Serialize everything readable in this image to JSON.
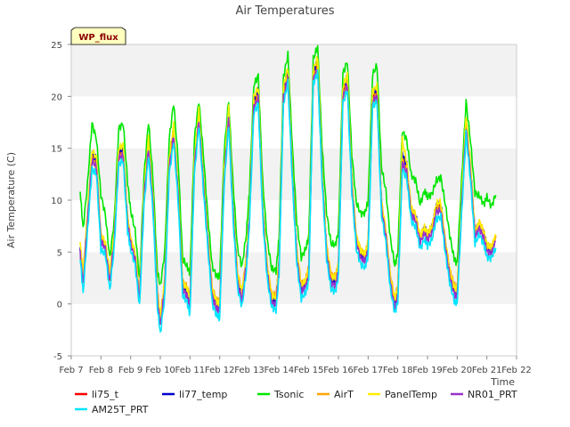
{
  "chart_data": {
    "type": "line",
    "title": "Air Temperatures",
    "xlabel": "Time",
    "ylabel": "Air Temperature (C)",
    "site_badge": "WP_flux",
    "x_unit": "day",
    "xlim": [
      7,
      22
    ],
    "ylim": [
      -5,
      25
    ],
    "x_ticks": [
      7,
      8,
      9,
      10,
      11,
      12,
      13,
      14,
      15,
      16,
      17,
      18,
      19,
      20,
      21,
      22
    ],
    "x_tick_labels": [
      "Feb 7",
      "Feb 8",
      "Feb 9",
      "Feb 10",
      "Feb 11",
      "Feb 12",
      "Feb 13",
      "Feb 14",
      "Feb 15",
      "Feb 16",
      "Feb 17",
      "Feb 18",
      "Feb 19",
      "Feb 20",
      "Feb 21",
      "Feb 22"
    ],
    "y_ticks": [
      -5,
      0,
      5,
      10,
      15,
      20,
      25
    ],
    "y_tick_labels": [
      "-5",
      "0",
      "5",
      "10",
      "15",
      "20",
      "25"
    ],
    "grid": "horizontal bands",
    "legend_position": "bottom",
    "x": [
      7.3,
      7.4,
      7.55,
      7.7,
      7.85,
      8.0,
      8.15,
      8.3,
      8.45,
      8.6,
      8.75,
      8.9,
      9.0,
      9.15,
      9.3,
      9.45,
      9.6,
      9.75,
      9.9,
      10.0,
      10.15,
      10.3,
      10.45,
      10.6,
      10.75,
      10.9,
      11.0,
      11.15,
      11.3,
      11.45,
      11.6,
      11.75,
      11.9,
      12.0,
      12.15,
      12.3,
      12.45,
      12.6,
      12.75,
      12.9,
      13.0,
      13.15,
      13.3,
      13.45,
      13.6,
      13.75,
      13.9,
      14.0,
      14.15,
      14.3,
      14.45,
      14.6,
      14.75,
      14.9,
      15.0,
      15.15,
      15.3,
      15.45,
      15.6,
      15.75,
      15.9,
      16.0,
      16.15,
      16.3,
      16.45,
      16.6,
      16.75,
      16.9,
      17.0,
      17.15,
      17.3,
      17.45,
      17.6,
      17.75,
      17.9,
      18.0,
      18.15,
      18.3,
      18.45,
      18.6,
      18.75,
      18.9,
      19.0,
      19.15,
      19.3,
      19.45,
      19.6,
      19.75,
      19.9,
      20.0,
      20.15,
      20.3,
      20.45,
      20.6,
      20.75,
      20.9,
      21.0,
      21.15,
      21.3
    ],
    "series": [
      {
        "name": "li75_t",
        "color": "#ff0000",
        "values": [
          5.3,
          2.4,
          8.5,
          14.3,
          13.6,
          6.3,
          5.6,
          2.6,
          6.6,
          14.5,
          14.7,
          8.1,
          6.1,
          4.7,
          0.8,
          10.6,
          15.4,
          10.1,
          1.0,
          -1.6,
          2.0,
          13.6,
          16.6,
          11.0,
          1.9,
          1.3,
          0.3,
          13.6,
          18.1,
          12.1,
          6.4,
          1.2,
          0.1,
          0.0,
          12.5,
          18.2,
          9.2,
          2.6,
          0.9,
          4.3,
          8.5,
          19.4,
          20.2,
          9.2,
          3.5,
          0.7,
          0.5,
          4.0,
          20.3,
          22.2,
          12.7,
          4.9,
          1.6,
          2.2,
          3.3,
          22.0,
          23.1,
          12.6,
          5.4,
          2.6,
          2.3,
          3.7,
          20.3,
          21.5,
          11.9,
          6.4,
          4.9,
          4.6,
          5.8,
          19.9,
          20.4,
          9.7,
          6.9,
          2.5,
          0.3,
          1.4,
          14.1,
          13.2,
          9.1,
          8.5,
          6.4,
          7.3,
          6.7,
          7.3,
          9.4,
          9.5,
          6.0,
          3.1,
          1.5,
          1.2,
          9.7,
          17.5,
          13.0,
          6.9,
          7.8,
          6.8,
          5.6,
          5.3,
          6.5
        ]
      },
      {
        "name": "li77_temp",
        "color": "#0000cc",
        "values": [
          5.1,
          2.3,
          8.7,
          14.6,
          13.9,
          6.1,
          5.6,
          2.6,
          6.5,
          14.7,
          15.0,
          8.1,
          6.1,
          4.6,
          0.7,
          10.8,
          15.7,
          10.2,
          0.9,
          -1.8,
          2.0,
          13.8,
          17.0,
          11.1,
          1.8,
          1.2,
          0.1,
          13.8,
          18.5,
          12.2,
          6.4,
          1.0,
          -0.1,
          -0.2,
          12.7,
          18.6,
          9.2,
          2.5,
          0.7,
          4.3,
          8.6,
          19.8,
          20.6,
          9.2,
          3.4,
          0.5,
          0.3,
          3.9,
          20.7,
          22.6,
          12.8,
          4.8,
          1.5,
          2.0,
          3.2,
          22.4,
          23.6,
          12.7,
          5.3,
          2.4,
          2.1,
          3.6,
          20.7,
          21.9,
          11.9,
          6.4,
          4.8,
          4.5,
          5.7,
          20.3,
          20.8,
          9.8,
          6.9,
          2.4,
          0.1,
          1.3,
          14.4,
          13.4,
          9.1,
          8.5,
          6.4,
          7.3,
          6.7,
          7.4,
          9.6,
          9.7,
          6.0,
          3.0,
          1.4,
          1.1,
          9.9,
          17.9,
          13.2,
          6.9,
          7.8,
          6.8,
          5.6,
          5.2,
          6.4
        ]
      },
      {
        "name": "Tsonic",
        "color": "#00e600",
        "values": [
          10.9,
          7.2,
          11.6,
          17.4,
          15.9,
          10.5,
          8.6,
          4.4,
          8.1,
          16.9,
          17.4,
          11.7,
          9.0,
          7.1,
          2.3,
          12.3,
          17.6,
          12.2,
          3.2,
          1.7,
          5.0,
          15.9,
          19.4,
          13.9,
          4.4,
          3.6,
          3.0,
          15.9,
          19.6,
          14.5,
          8.5,
          3.6,
          2.7,
          2.6,
          14.7,
          19.6,
          11.6,
          5.3,
          3.6,
          6.8,
          10.9,
          21.1,
          22.0,
          11.7,
          6.2,
          3.4,
          3.2,
          6.4,
          21.9,
          24.0,
          15.1,
          7.8,
          4.5,
          5.3,
          6.5,
          23.6,
          24.8,
          15.1,
          8.8,
          5.8,
          5.7,
          7.0,
          22.2,
          23.4,
          14.5,
          9.8,
          8.7,
          8.8,
          9.9,
          22.1,
          23.0,
          13.2,
          10.9,
          6.3,
          3.7,
          4.9,
          16.7,
          15.8,
          12.4,
          11.9,
          9.6,
          10.9,
          10.3,
          10.6,
          11.9,
          12.2,
          9.6,
          6.6,
          4.3,
          3.9,
          11.9,
          19.5,
          15.7,
          10.7,
          10.4,
          9.6,
          10.3,
          9.4,
          10.5
        ]
      },
      {
        "name": "AirT",
        "color": "#ffa500",
        "values": [
          5.6,
          2.6,
          8.3,
          14.0,
          13.3,
          6.5,
          5.7,
          2.8,
          6.7,
          14.2,
          14.4,
          8.2,
          6.2,
          4.8,
          1.0,
          10.4,
          15.1,
          10.0,
          1.3,
          -1.3,
          2.3,
          13.3,
          16.3,
          10.9,
          2.2,
          1.6,
          0.6,
          13.3,
          17.8,
          11.9,
          6.5,
          1.4,
          0.4,
          0.3,
          12.3,
          17.9,
          9.1,
          2.9,
          1.2,
          4.5,
          8.4,
          19.1,
          19.9,
          9.1,
          3.7,
          1.0,
          0.8,
          4.2,
          20.0,
          21.9,
          12.6,
          5.1,
          1.9,
          2.4,
          3.5,
          21.7,
          22.8,
          12.5,
          5.6,
          2.8,
          2.6,
          3.9,
          20.0,
          21.2,
          11.8,
          6.5,
          5.1,
          4.8,
          6.0,
          19.6,
          20.1,
          9.6,
          7.0,
          2.7,
          0.6,
          1.7,
          13.8,
          12.9,
          9.0,
          8.4,
          6.4,
          7.3,
          6.7,
          7.2,
          9.2,
          9.3,
          6.0,
          3.3,
          1.8,
          1.5,
          9.5,
          17.2,
          12.8,
          6.9,
          7.7,
          6.8,
          5.6,
          5.4,
          6.6
        ]
      },
      {
        "name": "PanelTemp",
        "color": "#ffee00",
        "values": [
          5.8,
          2.9,
          8.9,
          14.8,
          14.1,
          6.7,
          5.9,
          2.9,
          6.9,
          15.0,
          15.3,
          8.4,
          6.3,
          4.9,
          1.0,
          11.0,
          16.0,
          10.4,
          1.2,
          -1.4,
          2.2,
          14.1,
          17.3,
          11.3,
          2.1,
          1.5,
          0.4,
          14.1,
          18.7,
          12.4,
          6.6,
          1.3,
          0.2,
          0.1,
          13.0,
          18.9,
          9.4,
          2.8,
          1.1,
          4.5,
          8.8,
          20.0,
          20.8,
          9.4,
          3.7,
          0.8,
          0.6,
          4.1,
          20.9,
          22.8,
          12.9,
          5.0,
          1.8,
          2.3,
          3.4,
          22.6,
          23.7,
          12.9,
          5.6,
          2.7,
          2.5,
          3.8,
          20.9,
          22.1,
          12.1,
          6.6,
          5.1,
          4.8,
          6.0,
          20.5,
          21.0,
          9.9,
          7.1,
          2.6,
          0.4,
          1.5,
          15.8,
          13.6,
          9.2,
          8.6,
          6.5,
          7.4,
          6.8,
          7.5,
          9.7,
          9.8,
          6.1,
          3.2,
          1.6,
          1.3,
          10.1,
          18.2,
          13.4,
          7.0,
          7.9,
          6.9,
          5.7,
          5.4,
          6.7
        ]
      },
      {
        "name": "NR01_PRT",
        "color": "#9932cc",
        "values": [
          4.9,
          1.9,
          8.0,
          13.8,
          13.2,
          6.0,
          5.3,
          2.2,
          6.1,
          14.1,
          14.3,
          7.7,
          5.8,
          4.3,
          0.3,
          10.2,
          15.0,
          9.7,
          0.5,
          -2.1,
          1.5,
          13.2,
          16.2,
          10.6,
          1.4,
          0.8,
          -0.4,
          13.2,
          17.7,
          11.7,
          6.0,
          0.7,
          -0.5,
          -0.6,
          12.1,
          17.8,
          8.8,
          2.1,
          0.3,
          3.9,
          8.1,
          19.0,
          19.8,
          8.8,
          3.0,
          0.1,
          -0.1,
          3.5,
          19.9,
          21.8,
          12.3,
          4.4,
          1.1,
          1.7,
          2.8,
          21.6,
          22.7,
          12.2,
          4.9,
          2.0,
          1.8,
          3.2,
          19.9,
          21.1,
          11.4,
          5.9,
          4.4,
          4.1,
          5.3,
          19.5,
          20.0,
          9.2,
          6.5,
          2.0,
          -0.4,
          0.8,
          13.6,
          12.7,
          8.6,
          8.0,
          5.9,
          6.8,
          6.2,
          6.8,
          8.9,
          9.0,
          5.5,
          2.6,
          0.9,
          0.7,
          9.2,
          17.0,
          12.5,
          6.4,
          7.3,
          6.3,
          5.1,
          4.8,
          6.0
        ]
      },
      {
        "name": "AM25T_PRT",
        "color": "#00e5ff",
        "values": [
          4.5,
          1.0,
          7.0,
          13.0,
          12.5,
          5.2,
          4.8,
          1.3,
          5.5,
          13.5,
          13.8,
          7.0,
          5.2,
          3.8,
          -0.3,
          9.5,
          14.3,
          9.0,
          -0.3,
          -2.9,
          0.7,
          12.5,
          15.7,
          9.9,
          0.8,
          0.2,
          -1.1,
          12.5,
          17.2,
          11.0,
          5.4,
          0.0,
          -1.1,
          -1.4,
          11.4,
          17.3,
          8.1,
          1.5,
          -0.3,
          3.2,
          7.5,
          18.4,
          19.3,
          8.2,
          2.4,
          -0.3,
          -0.6,
          2.8,
          19.3,
          21.3,
          11.7,
          3.8,
          0.5,
          1.1,
          2.2,
          21.2,
          22.3,
          11.6,
          4.3,
          1.4,
          1.2,
          2.6,
          19.4,
          20.6,
          10.8,
          5.3,
          3.8,
          3.5,
          4.7,
          19.0,
          19.5,
          8.6,
          5.9,
          1.4,
          -0.9,
          0.2,
          13.0,
          12.1,
          8.0,
          7.4,
          5.3,
          6.2,
          5.6,
          6.2,
          8.2,
          8.4,
          4.9,
          2.0,
          0.3,
          0.1,
          8.6,
          16.4,
          11.9,
          5.8,
          6.7,
          5.7,
          4.5,
          4.4,
          5.4
        ]
      }
    ]
  }
}
